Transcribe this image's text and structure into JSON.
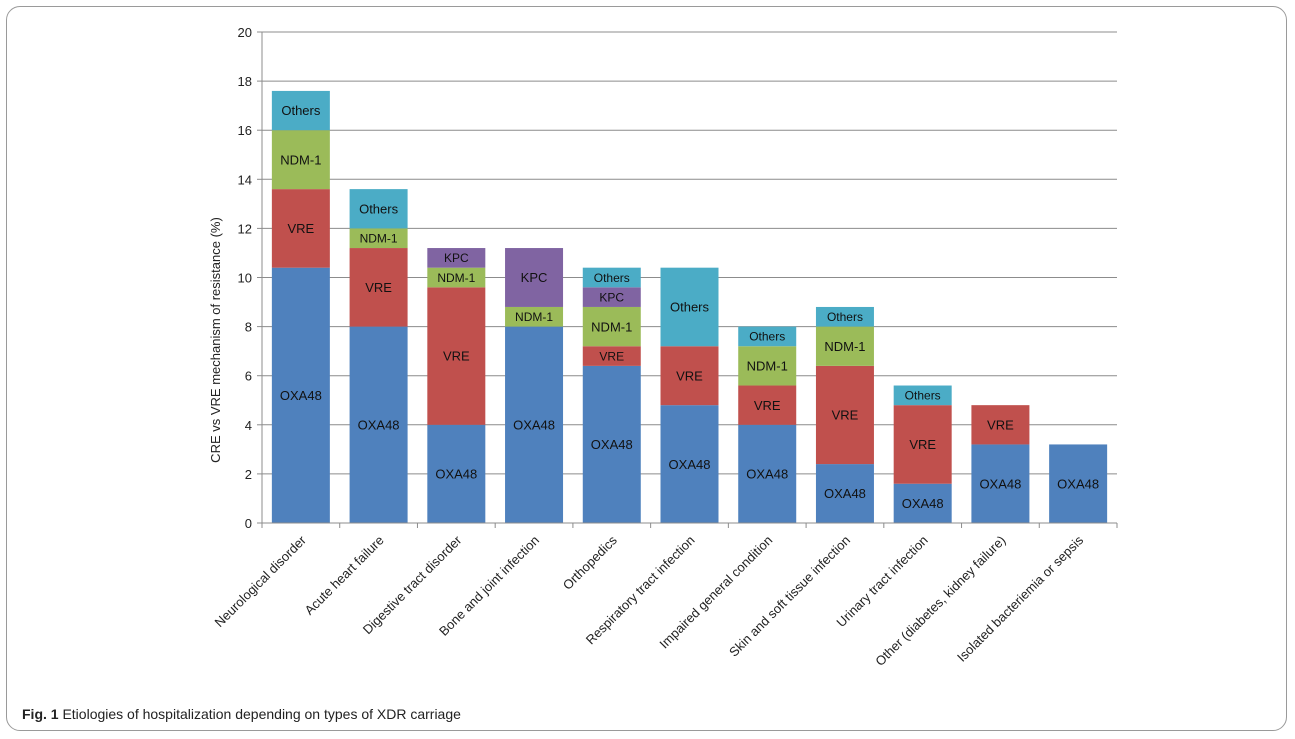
{
  "caption": {
    "label": "Fig. 1",
    "text": "Etiologies of hospitalization depending on types of XDR carriage"
  },
  "chart_data": {
    "type": "bar",
    "stacked": true,
    "title": "",
    "xlabel": "",
    "ylabel": "CRE vs VRE mechanism of resistance (%)",
    "ylim": [
      0,
      20
    ],
    "yticks": [
      0,
      2,
      4,
      6,
      8,
      10,
      12,
      14,
      16,
      18,
      20
    ],
    "grid": true,
    "legend": "none (series labelled inside bars)",
    "categories": [
      "Neurological disorder",
      "Acute heart failure",
      "Digestive tract disorder",
      "Bone and joint infection",
      "Orthopedics",
      "Respiratory tract infection",
      "Impaired general condition",
      "Skin and soft tissue infection",
      "Urinary tract infection",
      "Other (diabetes, kidney failure)",
      "Isolated bacteriemia or sepsis"
    ],
    "series": [
      {
        "name": "OXA48",
        "color": "#4f81bd",
        "values": [
          10.4,
          8.0,
          4.0,
          8.0,
          6.4,
          4.8,
          4.0,
          2.4,
          1.6,
          3.2,
          3.2
        ]
      },
      {
        "name": "VRE",
        "color": "#c0504d",
        "values": [
          3.2,
          3.2,
          5.6,
          0,
          0.8,
          2.4,
          1.6,
          4.0,
          3.2,
          1.6,
          0
        ]
      },
      {
        "name": "NDM-1",
        "color": "#9bbb59",
        "values": [
          2.4,
          0.8,
          0.8,
          0.8,
          1.6,
          0,
          1.6,
          1.6,
          0,
          0,
          0
        ]
      },
      {
        "name": "KPC",
        "color": "#8064a2",
        "values": [
          0,
          0,
          0.8,
          2.4,
          0.8,
          0,
          0,
          0,
          0,
          0,
          0
        ]
      },
      {
        "name": "Others",
        "color": "#4bacc6",
        "values": [
          1.6,
          1.6,
          0,
          0,
          0.8,
          3.2,
          0.8,
          0.8,
          0.8,
          0,
          0
        ]
      }
    ]
  }
}
